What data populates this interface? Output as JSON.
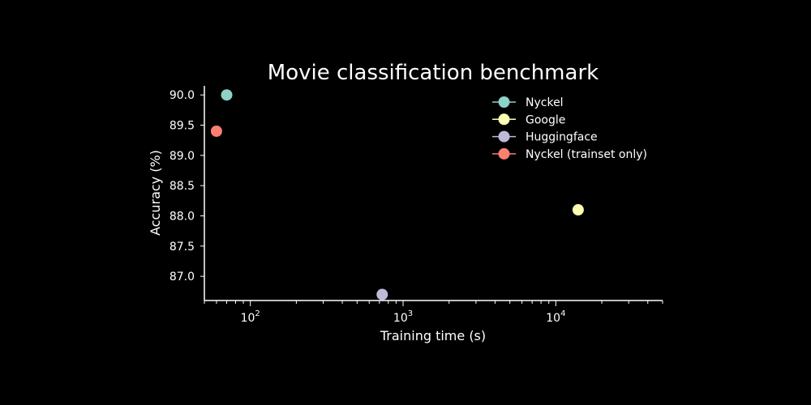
{
  "chart_data": {
    "type": "scatter",
    "title": "Movie classification benchmark",
    "xlabel": "Training time (s)",
    "ylabel": "Accuracy (%)",
    "xscale": "log",
    "xlim": [
      50,
      50000
    ],
    "ylim": [
      86.6,
      90.15
    ],
    "x_ticks": [
      {
        "value": 100,
        "base": "10",
        "exp": "2"
      },
      {
        "value": 1000,
        "base": "10",
        "exp": "3"
      },
      {
        "value": 10000,
        "base": "10",
        "exp": "4"
      }
    ],
    "y_ticks": [
      "87.0",
      "87.5",
      "88.0",
      "88.5",
      "89.0",
      "89.5",
      "90.0"
    ],
    "grid": false,
    "legend_position": "top-right",
    "series": [
      {
        "name": "Nyckel",
        "color": "#8dd3c7",
        "x": 70,
        "y": 90.0
      },
      {
        "name": "Google",
        "color": "#ffffb3",
        "x": 14000,
        "y": 88.1
      },
      {
        "name": "Huggingface",
        "color": "#bebada",
        "x": 730,
        "y": 86.7
      },
      {
        "name": "Nyckel (trainset only)",
        "color": "#fb8072",
        "x": 60,
        "y": 89.4
      }
    ]
  }
}
